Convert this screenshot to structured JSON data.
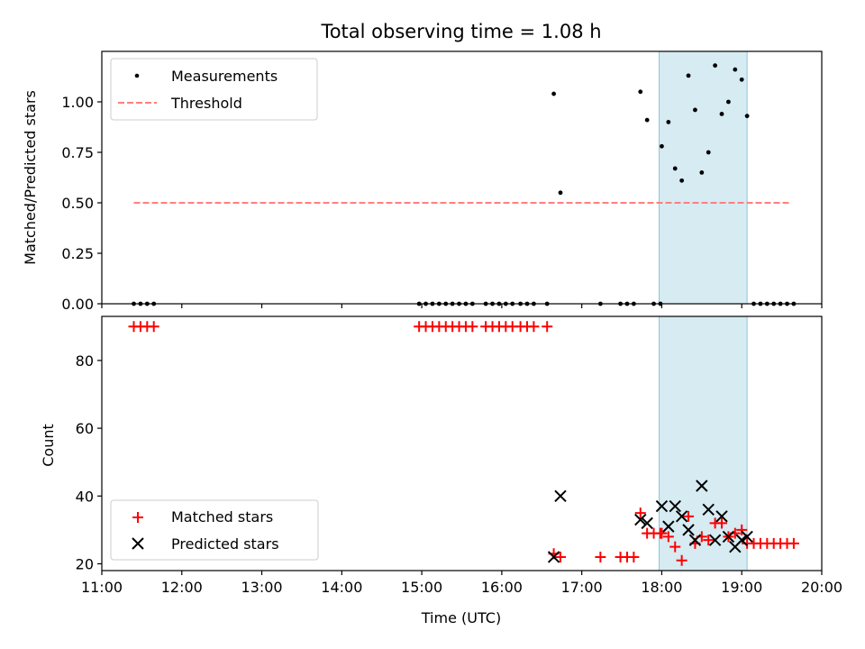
{
  "chart_data": [
    {
      "type": "scatter",
      "title": "Total observing time = 1.08 h",
      "xlabel": "",
      "ylabel": "Matched/Predicted stars",
      "xlim": [
        "11:00",
        "20:00"
      ],
      "ylim": [
        0,
        1.25
      ],
      "y_ticks": [
        "0.00",
        "0.25",
        "0.50",
        "0.75",
        "1.00"
      ],
      "shaded_interval": {
        "start": "17:58",
        "end": "19:04",
        "color": "#add8e6"
      },
      "legend_position": "upper left",
      "threshold": {
        "name": "Threshold",
        "y": 0.5,
        "x_start": "11:24",
        "x_end": "19:37",
        "color": "#ff7f7f"
      },
      "series": [
        {
          "name": "Measurements",
          "color": "#000000",
          "marker": "dot",
          "points": [
            [
              "11:24",
              0
            ],
            [
              "11:29",
              0
            ],
            [
              "11:34",
              0
            ],
            [
              "11:39",
              0
            ],
            [
              "14:58",
              0
            ],
            [
              "15:03",
              0
            ],
            [
              "15:08",
              0
            ],
            [
              "15:13",
              0
            ],
            [
              "15:18",
              0
            ],
            [
              "15:23",
              0
            ],
            [
              "15:28",
              0
            ],
            [
              "15:33",
              0
            ],
            [
              "15:38",
              0
            ],
            [
              "15:48",
              0
            ],
            [
              "15:53",
              0
            ],
            [
              "15:58",
              0
            ],
            [
              "16:03",
              0
            ],
            [
              "16:08",
              0
            ],
            [
              "16:14",
              0
            ],
            [
              "16:19",
              0
            ],
            [
              "16:24",
              0
            ],
            [
              "16:34",
              0
            ],
            [
              "16:39",
              1.04
            ],
            [
              "16:44",
              0.55
            ],
            [
              "17:14",
              0
            ],
            [
              "17:29",
              0
            ],
            [
              "17:34",
              0
            ],
            [
              "17:39",
              0
            ],
            [
              "17:44",
              1.05
            ],
            [
              "17:49",
              0.91
            ],
            [
              "17:54",
              0
            ],
            [
              "17:59",
              0
            ],
            [
              "18:00",
              0.78
            ],
            [
              "18:05",
              0.9
            ],
            [
              "18:10",
              0.67
            ],
            [
              "18:15",
              0.61
            ],
            [
              "18:20",
              1.13
            ],
            [
              "18:25",
              0.96
            ],
            [
              "18:30",
              0.65
            ],
            [
              "18:35",
              0.75
            ],
            [
              "18:40",
              1.18
            ],
            [
              "18:45",
              0.94
            ],
            [
              "18:50",
              1.0
            ],
            [
              "18:55",
              1.16
            ],
            [
              "19:00",
              1.11
            ],
            [
              "19:04",
              0.93
            ],
            [
              "19:09",
              0
            ],
            [
              "19:14",
              0
            ],
            [
              "19:19",
              0
            ],
            [
              "19:24",
              0
            ],
            [
              "19:29",
              0
            ],
            [
              "19:34",
              0
            ],
            [
              "19:39",
              0
            ]
          ]
        }
      ]
    },
    {
      "type": "scatter",
      "title": "",
      "xlabel": "Time (UTC)",
      "ylabel": "Count",
      "xlim": [
        "11:00",
        "20:00"
      ],
      "ylim": [
        18,
        93
      ],
      "x_ticks": [
        "11:00",
        "12:00",
        "13:00",
        "14:00",
        "15:00",
        "16:00",
        "17:00",
        "18:00",
        "19:00",
        "20:00"
      ],
      "y_ticks": [
        "20",
        "40",
        "60",
        "80"
      ],
      "shaded_interval": {
        "start": "17:58",
        "end": "19:04",
        "color": "#add8e6"
      },
      "legend_position": "lower left",
      "series": [
        {
          "name": "Matched stars",
          "color": "#ff0000",
          "marker": "plus",
          "points": [
            [
              "11:24",
              90
            ],
            [
              "11:29",
              90
            ],
            [
              "11:34",
              90
            ],
            [
              "11:39",
              90
            ],
            [
              "14:58",
              90
            ],
            [
              "15:03",
              90
            ],
            [
              "15:08",
              90
            ],
            [
              "15:13",
              90
            ],
            [
              "15:18",
              90
            ],
            [
              "15:23",
              90
            ],
            [
              "15:28",
              90
            ],
            [
              "15:33",
              90
            ],
            [
              "15:38",
              90
            ],
            [
              "15:48",
              90
            ],
            [
              "15:53",
              90
            ],
            [
              "15:58",
              90
            ],
            [
              "16:03",
              90
            ],
            [
              "16:08",
              90
            ],
            [
              "16:14",
              90
            ],
            [
              "16:19",
              90
            ],
            [
              "16:24",
              90
            ],
            [
              "16:34",
              90
            ],
            [
              "16:39",
              23
            ],
            [
              "16:44",
              22
            ],
            [
              "17:14",
              22
            ],
            [
              "17:29",
              22
            ],
            [
              "17:34",
              22
            ],
            [
              "17:39",
              22
            ],
            [
              "17:44",
              35
            ],
            [
              "17:49",
              29
            ],
            [
              "17:54",
              29
            ],
            [
              "17:59",
              29
            ],
            [
              "18:00",
              29
            ],
            [
              "18:05",
              28
            ],
            [
              "18:10",
              25
            ],
            [
              "18:15",
              21
            ],
            [
              "18:20",
              34
            ],
            [
              "18:25",
              26
            ],
            [
              "18:30",
              28
            ],
            [
              "18:35",
              27
            ],
            [
              "18:40",
              32
            ],
            [
              "18:45",
              32
            ],
            [
              "18:50",
              28
            ],
            [
              "18:55",
              29
            ],
            [
              "19:00",
              30
            ],
            [
              "19:04",
              26
            ],
            [
              "19:09",
              26
            ],
            [
              "19:14",
              26
            ],
            [
              "19:19",
              26
            ],
            [
              "19:24",
              26
            ],
            [
              "19:29",
              26
            ],
            [
              "19:34",
              26
            ],
            [
              "19:39",
              26
            ]
          ]
        },
        {
          "name": "Predicted stars",
          "color": "#000000",
          "marker": "x",
          "points": [
            [
              "16:39",
              22
            ],
            [
              "16:44",
              40
            ],
            [
              "17:44",
              33
            ],
            [
              "17:49",
              32
            ],
            [
              "18:00",
              37
            ],
            [
              "18:05",
              31
            ],
            [
              "18:10",
              37
            ],
            [
              "18:15",
              34
            ],
            [
              "18:20",
              30
            ],
            [
              "18:25",
              27
            ],
            [
              "18:30",
              43
            ],
            [
              "18:35",
              36
            ],
            [
              "18:40",
              27
            ],
            [
              "18:45",
              34
            ],
            [
              "18:50",
              28
            ],
            [
              "18:55",
              25
            ],
            [
              "19:00",
              27
            ],
            [
              "19:04",
              28
            ]
          ]
        }
      ]
    }
  ]
}
